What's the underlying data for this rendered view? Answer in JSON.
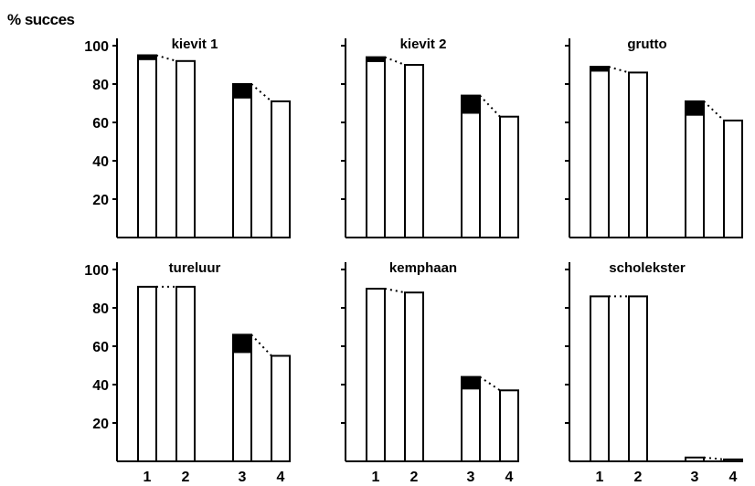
{
  "figure": {
    "ylabel": "% succes"
  },
  "colors": {
    "bar_fill": "#ffffff",
    "cap_fill": "#000000",
    "stroke": "#000000"
  },
  "chart_data": [
    {
      "type": "bar",
      "title": "kievit 1",
      "categories": [
        "1",
        "2",
        "3",
        "4"
      ],
      "series": [
        {
          "values": [
            93,
            92,
            73,
            71
          ]
        },
        {
          "values": [
            2,
            0,
            7,
            0
          ]
        }
      ],
      "ylim": [
        0,
        100
      ],
      "yticks": [
        20,
        40,
        60,
        80,
        100
      ],
      "grid": false
    },
    {
      "type": "bar",
      "title": "kievit 2",
      "categories": [
        "1",
        "2",
        "3",
        "4"
      ],
      "series": [
        {
          "values": [
            92,
            90,
            65,
            63
          ]
        },
        {
          "values": [
            2,
            0,
            9,
            0
          ]
        }
      ],
      "ylim": [
        0,
        100
      ],
      "yticks": [
        20,
        40,
        60,
        80,
        100
      ],
      "grid": false
    },
    {
      "type": "bar",
      "title": "grutto",
      "categories": [
        "1",
        "2",
        "3",
        "4"
      ],
      "series": [
        {
          "values": [
            87,
            86,
            64,
            61
          ]
        },
        {
          "values": [
            2,
            0,
            7,
            0
          ]
        }
      ],
      "ylim": [
        0,
        100
      ],
      "yticks": [
        20,
        40,
        60,
        80,
        100
      ],
      "grid": false
    },
    {
      "type": "bar",
      "title": "tureluur",
      "categories": [
        "1",
        "2",
        "3",
        "4"
      ],
      "series": [
        {
          "values": [
            91,
            91,
            57,
            55
          ]
        },
        {
          "values": [
            0,
            0,
            9,
            0
          ]
        }
      ],
      "ylim": [
        0,
        100
      ],
      "yticks": [
        20,
        40,
        60,
        80,
        100
      ],
      "grid": false
    },
    {
      "type": "bar",
      "title": "kemphaan",
      "categories": [
        "1",
        "2",
        "3",
        "4"
      ],
      "series": [
        {
          "values": [
            90,
            88,
            38,
            37
          ]
        },
        {
          "values": [
            0,
            0,
            6,
            0
          ]
        }
      ],
      "ylim": [
        0,
        100
      ],
      "yticks": [
        20,
        40,
        60,
        80,
        100
      ],
      "grid": false
    },
    {
      "type": "bar",
      "title": "scholekster",
      "categories": [
        "1",
        "2",
        "3",
        "4"
      ],
      "series": [
        {
          "values": [
            86,
            86,
            2,
            1
          ]
        },
        {
          "values": [
            0,
            0,
            0,
            0
          ]
        }
      ],
      "ylim": [
        0,
        100
      ],
      "yticks": [
        20,
        40,
        60,
        80,
        100
      ],
      "grid": false
    }
  ]
}
